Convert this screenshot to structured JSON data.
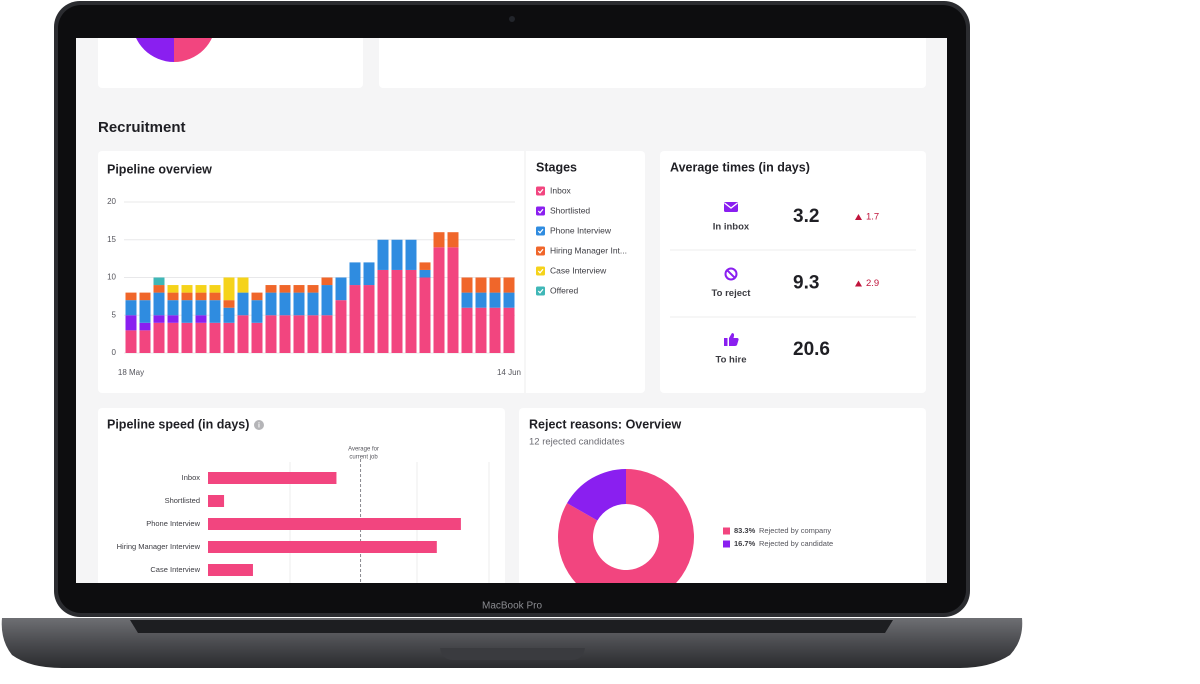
{
  "laptop_label": "MacBook Pro",
  "section_title": "Recruitment",
  "average_times": {
    "title": "Average times (in days)",
    "rows": [
      {
        "label": "In inbox",
        "value": 3.2,
        "change": 1.7
      },
      {
        "label": "To reject",
        "value": 9.3,
        "change": 2.9
      },
      {
        "label": "To hire",
        "value": 20.6,
        "change": null
      }
    ]
  },
  "chart_data": [
    {
      "type": "stacked_bar",
      "title": "Pipeline overview",
      "legend_title": "Stages",
      "categories": [
        "18 May",
        null,
        null,
        null,
        null,
        null,
        null,
        null,
        null,
        null,
        null,
        null,
        null,
        null,
        null,
        null,
        null,
        null,
        null,
        null,
        null,
        null,
        null,
        null,
        null,
        null,
        null,
        "14 Jun"
      ],
      "ylim": [
        0,
        20
      ],
      "yticks": [
        0,
        5,
        10,
        15,
        20
      ],
      "grid": true,
      "series": [
        {
          "name": "Inbox",
          "color": "#f2457f",
          "values": [
            3,
            3,
            4,
            4,
            4,
            4,
            4,
            4,
            5,
            4,
            5,
            5,
            5,
            5,
            5,
            7,
            9,
            9,
            11,
            11,
            11,
            10,
            14,
            14,
            6,
            6,
            6,
            6
          ]
        },
        {
          "name": "Shortlisted",
          "color": "#8a1ff0",
          "values": [
            2,
            1,
            1,
            1,
            0,
            1,
            0,
            0,
            0,
            0,
            0,
            0,
            0,
            0,
            0,
            0,
            0,
            0,
            0,
            0,
            0,
            0,
            0,
            0,
            0,
            0,
            0,
            0
          ]
        },
        {
          "name": "Phone Interview",
          "color": "#2f8ce0",
          "values": [
            2,
            3,
            3,
            2,
            3,
            2,
            3,
            2,
            3,
            3,
            3,
            3,
            3,
            3,
            4,
            3,
            3,
            3,
            4,
            4,
            4,
            1,
            0,
            0,
            2,
            2,
            2,
            2
          ]
        },
        {
          "name": "Hiring Manager Int...",
          "color": "#f0662a",
          "values": [
            1,
            1,
            1,
            1,
            1,
            1,
            1,
            1,
            0,
            1,
            1,
            1,
            1,
            1,
            1,
            0,
            0,
            0,
            0,
            0,
            0,
            1,
            2,
            2,
            2,
            2,
            2,
            2
          ]
        },
        {
          "name": "Case Interview",
          "color": "#f5d31a",
          "values": [
            0,
            0,
            0,
            1,
            1,
            1,
            1,
            3,
            2,
            0,
            0,
            0,
            0,
            0,
            0,
            0,
            0,
            0,
            0,
            0,
            0,
            0,
            0,
            0,
            0,
            0,
            0,
            0
          ]
        },
        {
          "name": "Offered",
          "color": "#3fb7b7",
          "values": [
            0,
            0,
            1,
            0,
            0,
            0,
            0,
            0,
            0,
            0,
            0,
            0,
            0,
            0,
            0,
            0,
            0,
            0,
            0,
            0,
            0,
            0,
            0,
            0,
            0,
            0,
            0,
            0
          ]
        }
      ]
    },
    {
      "type": "hbar",
      "title": "Pipeline speed (in days)",
      "categories": [
        "Inbox",
        "Shortlisted",
        "Phone Interview",
        "Hiring Manager Interview",
        "Case Interview"
      ],
      "values": [
        16,
        2,
        31.5,
        28.5,
        5.6
      ],
      "color": "#f2457f",
      "xlim": [
        0,
        35
      ],
      "average": 19,
      "average_label": [
        "Average for",
        "current job"
      ]
    },
    {
      "type": "donut",
      "title": "Reject reasons: Overview",
      "subtitle": "12 rejected candidates",
      "categories": [
        "Rejected by company",
        "Rejected by candidate"
      ],
      "values": [
        83.3,
        16.7
      ],
      "value_labels": [
        "83.3%",
        "16.7%"
      ],
      "colors": [
        "#f2457f",
        "#8a1ff0"
      ]
    }
  ]
}
